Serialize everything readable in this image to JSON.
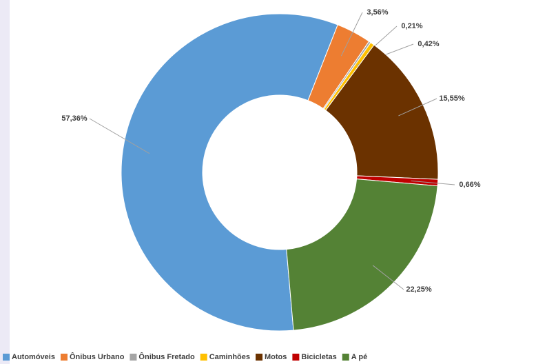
{
  "chart_data": {
    "type": "pie",
    "categories": [
      "Automóveis",
      "Ônibus Urbano",
      "Ônibus Fretado",
      "Caminhões",
      "Motos",
      "Bicicletas",
      "A pé"
    ],
    "values": [
      57.36,
      3.56,
      0.21,
      0.42,
      15.55,
      0.66,
      22.25
    ],
    "value_labels": [
      "57,36%",
      "3,56%",
      "0,21%",
      "0,42%",
      "15,55%",
      "0,66%",
      "22,25%"
    ],
    "colors": [
      "#5b9bd5",
      "#ed7d31",
      "#a5a5a5",
      "#ffc000",
      "#6b3200",
      "#c00000",
      "#548235"
    ],
    "donut": true,
    "legend": "bottom"
  }
}
